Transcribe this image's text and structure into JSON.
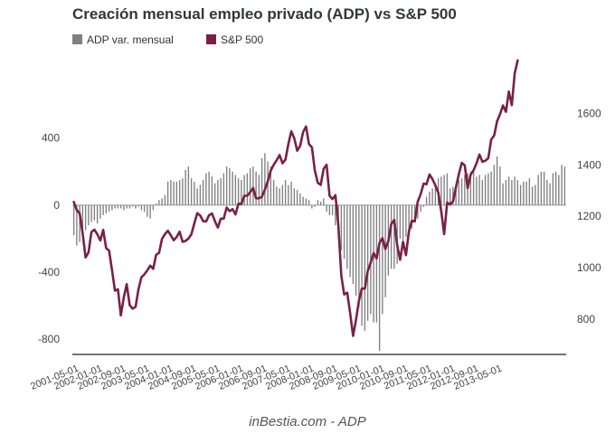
{
  "chart_data": {
    "type": "bar+line",
    "title": "Creación mensual empleo privado (ADP) vs S&P 500",
    "source": "inBestia.com - ADP",
    "legend": [
      {
        "name": "ADP var. mensual",
        "color": "#808080",
        "kind": "bar"
      },
      {
        "name": "S&P 500",
        "color": "#7a2048",
        "kind": "line"
      }
    ],
    "x_tick_labels": [
      "2001-05-01",
      "2002-01-01",
      "2002-09-01",
      "2003-05-01",
      "2004-01-01",
      "2004-09-01",
      "2005-05-01",
      "2006-01-01",
      "2006-09-01",
      "2007-05-01",
      "2008-01-01",
      "2008-09-01",
      "2009-05-01",
      "2010-01-01",
      "2010-09-01",
      "2011-05-01",
      "2012-01-01",
      "2012-09-01",
      "2013-05-01"
    ],
    "y_left": {
      "label": "ADP var. mensual",
      "ticks": [
        400,
        0,
        -400,
        -800
      ],
      "range": [
        -880,
        900
      ]
    },
    "y_right": {
      "label": "S&P 500",
      "ticks": [
        800,
        1000,
        1200,
        1400,
        1600
      ],
      "range": [
        670,
        1830
      ]
    },
    "series": [
      {
        "name": "ADP var. mensual",
        "axis": "left",
        "start": "2001-05",
        "values": [
          -180,
          -240,
          -220,
          -170,
          -150,
          -120,
          -100,
          -90,
          -110,
          -80,
          -60,
          -50,
          -40,
          -30,
          -20,
          -20,
          -20,
          -30,
          -20,
          -20,
          -10,
          -20,
          -10,
          -30,
          -40,
          -70,
          -80,
          -30,
          10,
          30,
          40,
          60,
          140,
          150,
          140,
          140,
          150,
          160,
          210,
          230,
          160,
          140,
          100,
          120,
          150,
          190,
          200,
          170,
          130,
          150,
          160,
          190,
          230,
          220,
          200,
          180,
          160,
          150,
          180,
          190,
          220,
          230,
          200,
          180,
          280,
          310,
          260,
          230,
          150,
          110,
          100,
          120,
          150,
          120,
          140,
          100,
          90,
          70,
          50,
          40,
          30,
          -20,
          -10,
          30,
          20,
          40,
          -40,
          -60,
          -60,
          -120,
          -200,
          -270,
          -320,
          -380,
          -430,
          -470,
          -540,
          -610,
          -720,
          -750,
          -690,
          -650,
          -700,
          -700,
          -870,
          -650,
          -550,
          -420,
          -380,
          -380,
          -350,
          -200,
          -210,
          -190,
          -180,
          -140,
          -100,
          -80,
          -40,
          -10,
          50,
          80,
          100,
          130,
          160,
          170,
          180,
          190,
          100,
          110,
          130,
          150,
          160,
          180,
          190,
          200,
          210,
          170,
          180,
          150,
          180,
          190,
          200,
          240,
          290,
          230,
          130,
          150,
          170,
          150,
          170,
          150,
          120,
          140,
          140,
          160,
          110,
          120,
          180,
          200,
          200,
          150,
          130,
          190,
          200,
          180,
          240,
          230
        ]
      },
      {
        "name": "S&P 500",
        "axis": "right",
        "start": "2001-05",
        "values": [
          1256,
          1224,
          1211,
          1134,
          1040,
          1060,
          1139,
          1148,
          1130,
          1106,
          1147,
          1076,
          1067,
          990,
          911,
          916,
          815,
          885,
          936,
          855,
          841,
          848,
          916,
          963,
          974,
          990,
          1008,
          996,
          1050,
          1058,
          1112,
          1131,
          1144,
          1126,
          1107,
          1120,
          1140,
          1101,
          1104,
          1114,
          1130,
          1173,
          1212,
          1203,
          1181,
          1180,
          1204,
          1211,
          1181,
          1156,
          1191,
          1191,
          1234,
          1220,
          1228,
          1207,
          1249,
          1248,
          1280,
          1280,
          1294,
          1310,
          1270,
          1270,
          1276,
          1304,
          1336,
          1378,
          1400,
          1418,
          1438,
          1406,
          1420,
          1482,
          1530,
          1503,
          1455,
          1474,
          1527,
          1549,
          1481,
          1468,
          1378,
          1330,
          1322,
          1385,
          1400,
          1280,
          1267,
          1282,
          1166,
          968,
          896,
          903,
          825,
          735,
          797,
          872,
          919,
          919,
          987,
          1020,
          1057,
          1036,
          1096,
          1115,
          1073,
          1104,
          1169,
          1186,
          1089,
          1031,
          1101,
          1049,
          1141,
          1183,
          1180,
          1257,
          1286,
          1327,
          1325,
          1363,
          1345,
          1320,
          1292,
          1219,
          1131,
          1253,
          1246,
          1258,
          1312,
          1365,
          1408,
          1398,
          1310,
          1362,
          1379,
          1406,
          1440,
          1412,
          1416,
          1426,
          1498,
          1514,
          1569,
          1597,
          1631,
          1606,
          1685,
          1632,
          1756,
          1806
        ]
      }
    ]
  }
}
